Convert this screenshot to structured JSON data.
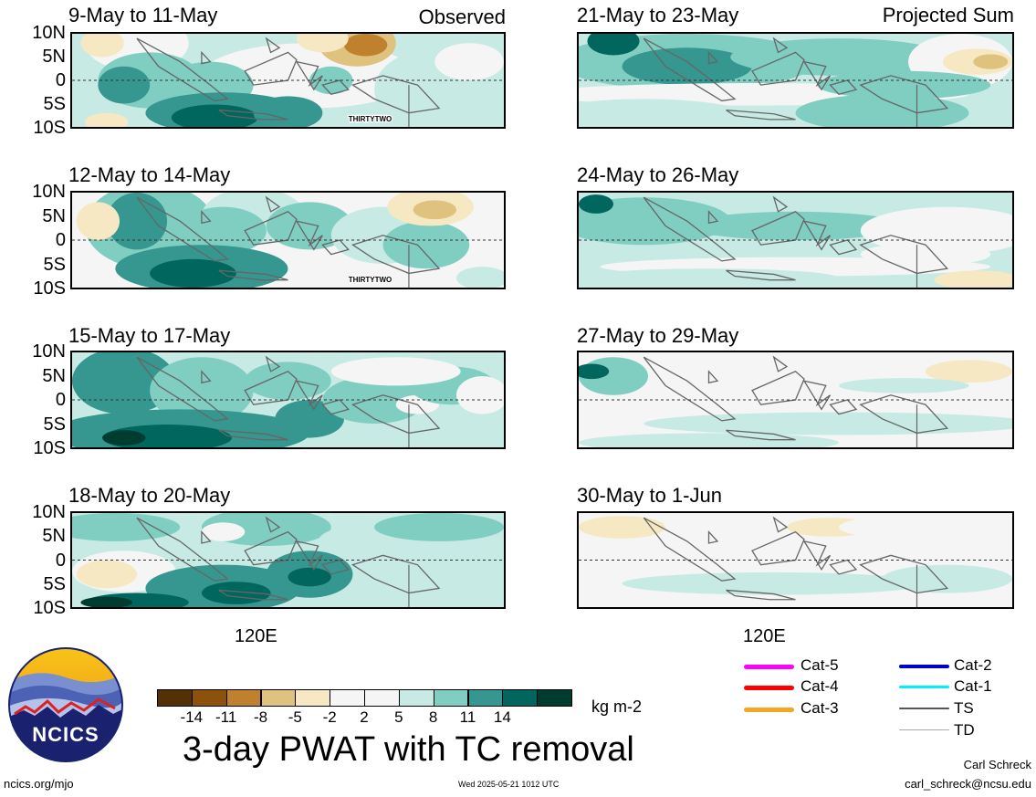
{
  "panels": [
    {
      "id": "p1",
      "title": "9-May to 11-May",
      "tag": "Observed",
      "storm": "THIRTYTWO",
      "pattern": "obs1"
    },
    {
      "id": "p2",
      "title": "21-May to 23-May",
      "tag": "Projected Sum",
      "storm": "",
      "pattern": "proj1"
    },
    {
      "id": "p3",
      "title": "12-May to 14-May",
      "tag": "",
      "storm": "THIRTYTWO",
      "pattern": "obs2"
    },
    {
      "id": "p4",
      "title": "24-May to 26-May",
      "tag": "",
      "storm": "",
      "pattern": "proj2"
    },
    {
      "id": "p5",
      "title": "15-May to 17-May",
      "tag": "",
      "storm": "",
      "pattern": "obs3"
    },
    {
      "id": "p6",
      "title": "27-May to 29-May",
      "tag": "",
      "storm": "",
      "pattern": "proj3"
    },
    {
      "id": "p7",
      "title": "18-May to 20-May",
      "tag": "",
      "storm": "",
      "pattern": "obs4"
    },
    {
      "id": "p8",
      "title": "30-May to 1-Jun",
      "tag": "",
      "storm": "",
      "pattern": "proj4"
    }
  ],
  "lat_labels": [
    "10N",
    "5N",
    "0",
    "5S",
    "10S"
  ],
  "lon_label": "120E",
  "colorbar": {
    "colors": [
      "#543005",
      "#8c510a",
      "#bf812d",
      "#dfc27d",
      "#f6e8c3",
      "#f5f5f5",
      "#f5f5f5",
      "#c7eae5",
      "#80cdc1",
      "#35978f",
      "#01665e",
      "#003c30"
    ],
    "ticks": [
      "-14",
      "-11",
      "-8",
      "-5",
      "-2",
      "2",
      "5",
      "8",
      "11",
      "14"
    ],
    "units": "kg m-2"
  },
  "legend": [
    {
      "label": "Cat-5",
      "color": "#ff00ff"
    },
    {
      "label": "Cat-4",
      "color": "#ff0000"
    },
    {
      "label": "Cat-3",
      "color": "#f5a623"
    },
    {
      "label": "Cat-2",
      "color": "#0000cc"
    },
    {
      "label": "Cat-1",
      "color": "#00eeff"
    },
    {
      "label": "TS",
      "color": "#555555"
    },
    {
      "label": "TD",
      "color": "#aaaaaa"
    }
  ],
  "main_title": "3-day PWAT with TC removal",
  "logo_text": "NCICS",
  "footer": {
    "url": "ncics.org/mjo",
    "timestamp": "Wed 2025-05-21 1012 UTC",
    "author": "Carl Schreck",
    "email": "carl_schreck@ncsu.edu"
  }
}
